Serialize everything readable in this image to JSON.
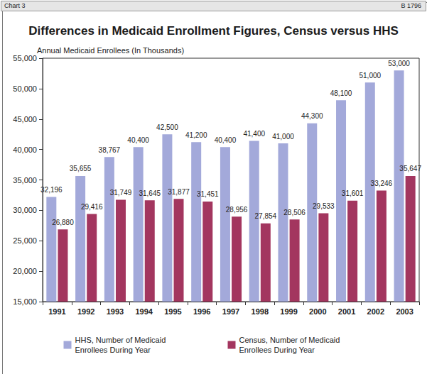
{
  "chart_data": {
    "type": "bar",
    "title": "Differences in Medicaid Enrollment Figures, Census versus HHS",
    "annotations": [
      "Chart 3",
      "B 1796"
    ],
    "y_label": "Annual Medicaid Enrollees (In Thousands)",
    "categories": [
      "1991",
      "1992",
      "1993",
      "1994",
      "1995",
      "1996",
      "1997",
      "1998",
      "1999",
      "2000",
      "2001",
      "2002",
      "2003"
    ],
    "series": [
      {
        "name": "HHS, Number of Medicaid Enrollees During Year",
        "color": "#a3a9da",
        "values": [
          32196,
          35655,
          38767,
          40400,
          42500,
          41200,
          40400,
          41400,
          41000,
          44300,
          48100,
          51000,
          53000
        ],
        "value_labels": [
          "32,196",
          "35,655",
          "38,767",
          "40,400",
          "42,500",
          "41,200",
          "40,400",
          "41,400",
          "41,000",
          "44,300",
          "48,100",
          "51,000",
          "53,000"
        ]
      },
      {
        "name": "Census, Number of Medicaid Enrollees During Year",
        "color": "#a3365f",
        "values": [
          26880,
          29416,
          31749,
          31645,
          31877,
          31451,
          28956,
          27854,
          28506,
          29533,
          31601,
          33246,
          35647
        ],
        "value_labels": [
          "26,880",
          "29,416",
          "31,749",
          "31,645",
          "31,877",
          "31,451",
          "28,956",
          "27,854",
          "28,506",
          "29,533",
          "31,601",
          "33,246",
          "35,647"
        ]
      }
    ],
    "ylim": [
      15000,
      55000
    ],
    "yticks": [
      {
        "value": 15000,
        "label": "15,000"
      },
      {
        "value": 20000,
        "label": "20,000"
      },
      {
        "value": 25000,
        "label": "25,000"
      },
      {
        "value": 30000,
        "label": "30,000"
      },
      {
        "value": 35000,
        "label": "35,000"
      },
      {
        "value": 40000,
        "label": "40,000"
      },
      {
        "value": 45000,
        "label": "45,000"
      },
      {
        "value": 50000,
        "label": "50,000"
      },
      {
        "value": 55000,
        "label": "55,000"
      }
    ],
    "grid": false,
    "legend": "bottom",
    "data_labels": true
  }
}
